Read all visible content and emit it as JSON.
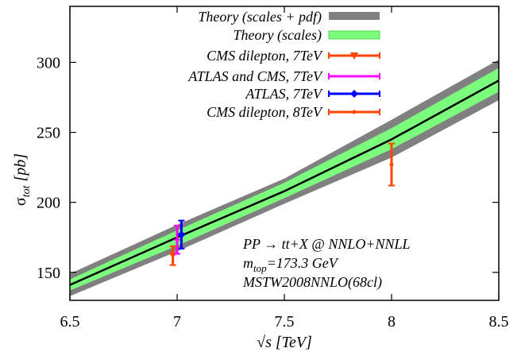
{
  "chart_data": {
    "type": "line",
    "x_label": {
      "prefix": "√s [TeV]"
    },
    "y_label": {
      "prefix": "σ",
      "subscript": "tot",
      "suffix": " [pb]"
    },
    "xlim": [
      6.5,
      8.5
    ],
    "ylim": [
      130,
      340
    ],
    "x_ticks": [
      6.5,
      7,
      7.5,
      8,
      8.5
    ],
    "x_tick_labels": [
      "6.5",
      "7",
      "7.5",
      "8",
      "8.5"
    ],
    "y_ticks": [
      150,
      200,
      250,
      300
    ],
    "y_tick_labels": [
      "150",
      "200",
      "250",
      "300"
    ],
    "grid": false,
    "legend_position": "top-right",
    "legend": [
      "Theory (scales + pdf)",
      "Theory (scales)",
      "CMS dilepton, 7TeV",
      "ATLAS and CMS, 7TeV",
      "ATLAS, 7TeV",
      "CMS dilepton, 8TeV"
    ],
    "annotations": {
      "line1": "PP → tt+X @ NNLO+NNLL",
      "line2_prefix": "m",
      "line2_sub": "top",
      "line2_suffix": "=173.3 GeV",
      "line3": "MSTW2008NNLO(68cl)"
    },
    "colors": {
      "outer_band": "#808080",
      "inner_band": "#7cfc7c",
      "center_line": "#000000",
      "cms_dilepton_7": "#ff4500",
      "atlas_cms_7": "#ff00ff",
      "atlas_7": "#0000ff",
      "cms_dilepton_8": "#ff4500"
    },
    "series": [
      {
        "name": "Theory (scales + pdf)",
        "kind": "band",
        "x": [
          6.5,
          7.0,
          7.5,
          8.0,
          8.5
        ],
        "lower": [
          133,
          165,
          199,
          232,
          273
        ],
        "upper": [
          149,
          184,
          217,
          259,
          302
        ],
        "color": "#808080"
      },
      {
        "name": "Theory (scales)",
        "kind": "band",
        "x": [
          6.5,
          7.0,
          7.5,
          8.0,
          8.5
        ],
        "lower": [
          137,
          169,
          203,
          238,
          279
        ],
        "upper": [
          145,
          180,
          214,
          253,
          296
        ],
        "color": "#7cfc7c"
      },
      {
        "name": "",
        "kind": "line",
        "x": [
          6.5,
          7.0,
          7.5,
          8.0,
          8.5
        ],
        "y": [
          141,
          175,
          208,
          245,
          287
        ],
        "color": "#000000"
      },
      {
        "name": "CMS dilepton, 7TeV",
        "kind": "errorbar",
        "x": [
          6.98
        ],
        "y": [
          161.9
        ],
        "yerr_low": [
          6.7
        ],
        "yerr_high": [
          6.7
        ],
        "color": "#ff4500",
        "marker": "triangle-down"
      },
      {
        "name": "ATLAS and CMS, 7TeV",
        "kind": "errorbar",
        "x": [
          7.0
        ],
        "y": [
          173.3
        ],
        "yerr_low": [
          10.1
        ],
        "yerr_high": [
          10.1
        ],
        "color": "#ff00ff",
        "marker": "dash"
      },
      {
        "name": "ATLAS, 7TeV",
        "kind": "errorbar",
        "x": [
          7.02
        ],
        "y": [
          177
        ],
        "yerr_low": [
          10
        ],
        "yerr_high": [
          10
        ],
        "color": "#0000ff",
        "marker": "diamond"
      },
      {
        "name": "CMS dilepton, 8TeV",
        "kind": "errorbar",
        "x": [
          8.0
        ],
        "y": [
          227
        ],
        "yerr_low": [
          15
        ],
        "yerr_high": [
          15
        ],
        "color": "#ff4500",
        "marker": "dot"
      }
    ]
  }
}
